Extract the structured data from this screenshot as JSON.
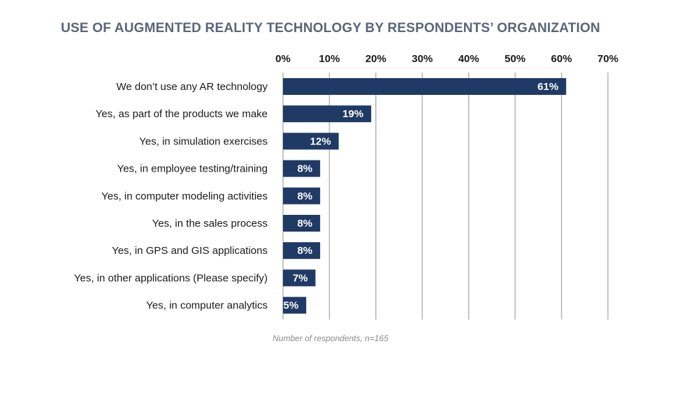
{
  "chart_data": {
    "type": "bar",
    "orientation": "horizontal",
    "title": "USE OF AUGMENTED REALITY TECHNOLOGY BY RESPONDENTS’ ORGANIZATION",
    "note": "Number of respondents, n=165",
    "categories": [
      "We don’t use any AR technology",
      "Yes, as part of the products we make",
      "Yes, in simulation exercises",
      "Yes, in employee testing/training",
      "Yes, in computer modeling activities",
      "Yes, in the sales process",
      "Yes, in GPS and GIS applications",
      "Yes, in other applications (Please specify)",
      "Yes, in computer analytics"
    ],
    "values": [
      61,
      19,
      12,
      8,
      8,
      8,
      8,
      7,
      5
    ],
    "value_labels": [
      "61%",
      "19%",
      "12%",
      "8%",
      "8%",
      "8%",
      "8%",
      "7%",
      "5%"
    ],
    "xlim": [
      0,
      70
    ],
    "x_ticks": [
      0,
      10,
      20,
      30,
      40,
      50,
      60,
      70
    ],
    "x_tick_labels": [
      "0%",
      "10%",
      "20%",
      "30%",
      "40%",
      "50%",
      "60%",
      "70%"
    ],
    "x_axis_position": "top",
    "grid": true,
    "legend": "none",
    "bar_color": "#1f3a64",
    "label_color": "#ffffff",
    "grid_color": "#b5b5b5",
    "text_color": "#1a1a1a"
  }
}
